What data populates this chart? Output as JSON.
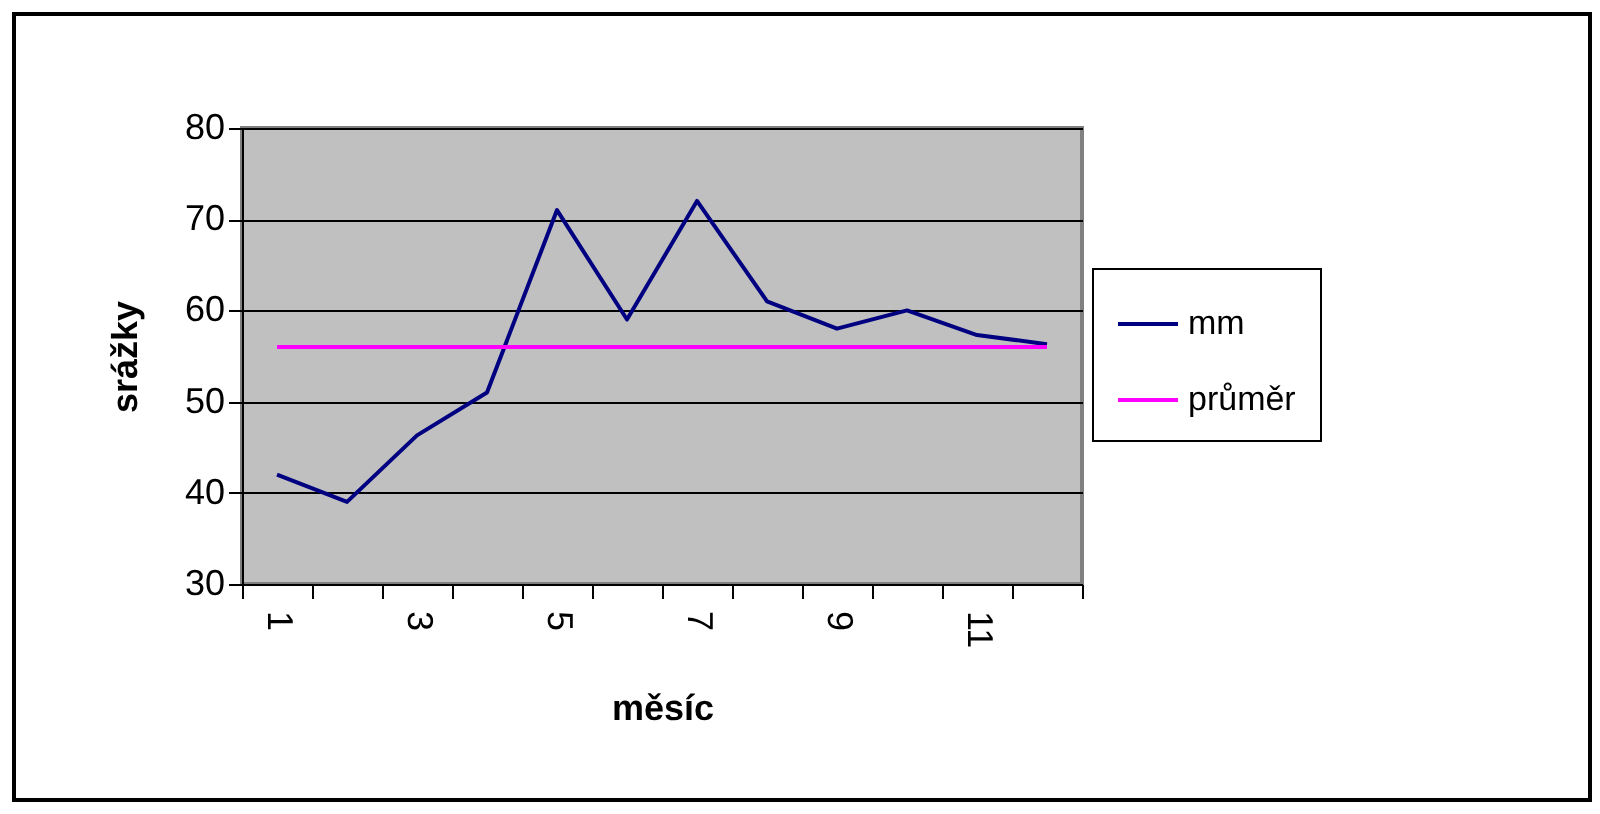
{
  "chart_data": {
    "type": "line",
    "xlabel": "měsíc",
    "ylabel": "srážky",
    "categories": [
      "1",
      null,
      "3",
      null,
      "5",
      null,
      "7",
      null,
      "9",
      null,
      "11",
      null
    ],
    "series": [
      {
        "name": "mm",
        "color": "#000080",
        "values": [
          42,
          39,
          46.3,
          51,
          71,
          59,
          72,
          61,
          58,
          60,
          57.3,
          56.3
        ]
      },
      {
        "name": "průměr",
        "color": "#ff00ff",
        "values": [
          56,
          56,
          56,
          56,
          56,
          56,
          56,
          56,
          56,
          56,
          56,
          56
        ]
      }
    ],
    "ylim": [
      30,
      80
    ],
    "yticks": [
      30,
      40,
      50,
      60,
      70,
      80
    ],
    "grid": "y",
    "legend": "right",
    "marker": "none",
    "line_style": "solid"
  }
}
